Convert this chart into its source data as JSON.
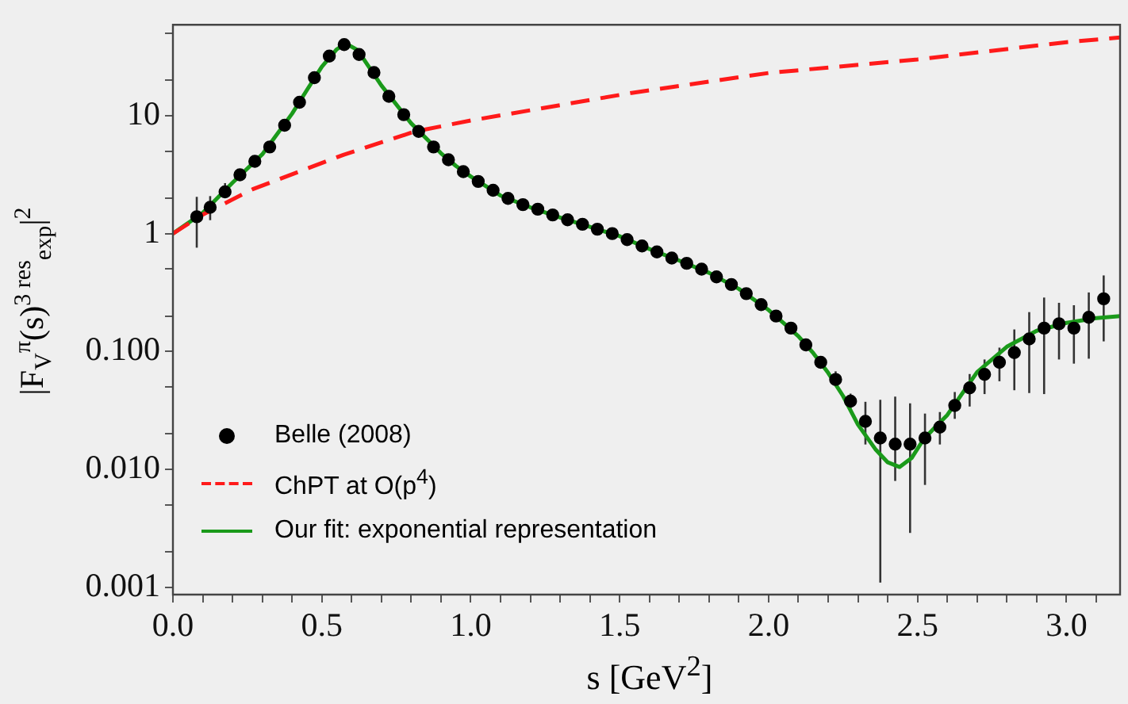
{
  "chart_data": {
    "type": "scatter",
    "xlabel": "s [GeV$^{2}$]",
    "ylabel": "|F$_{V}$$^{π}$(s)$^{3 res}$$_{exp}$|$^{2}$",
    "log": "y",
    "grid": false,
    "legend": "bottom left",
    "xlim": [
      0,
      3.18
    ],
    "ylim": [
      0.00087,
      59
    ],
    "xticks": [
      {
        "value": 0,
        "label": "0.0"
      },
      {
        "value": 0.1,
        "label": null
      },
      {
        "value": 0.2,
        "label": null
      },
      {
        "value": 0.3,
        "label": null
      },
      {
        "value": 0.4,
        "label": null
      },
      {
        "value": 0.5,
        "label": "0.5"
      },
      {
        "value": 0.6,
        "label": null
      },
      {
        "value": 0.7,
        "label": null
      },
      {
        "value": 0.8,
        "label": null
      },
      {
        "value": 0.9,
        "label": null
      },
      {
        "value": 1,
        "label": "1.0"
      },
      {
        "value": 1.1,
        "label": null
      },
      {
        "value": 1.2,
        "label": null
      },
      {
        "value": 1.3,
        "label": null
      },
      {
        "value": 1.4,
        "label": null
      },
      {
        "value": 1.5,
        "label": "1.5"
      },
      {
        "value": 1.6,
        "label": null
      },
      {
        "value": 1.7,
        "label": null
      },
      {
        "value": 1.8,
        "label": null
      },
      {
        "value": 1.9,
        "label": null
      },
      {
        "value": 2,
        "label": "2.0"
      },
      {
        "value": 2.1,
        "label": null
      },
      {
        "value": 2.2,
        "label": null
      },
      {
        "value": 2.3,
        "label": null
      },
      {
        "value": 2.4,
        "label": null
      },
      {
        "value": 2.5,
        "label": "2.5"
      },
      {
        "value": 2.6,
        "label": null
      },
      {
        "value": 2.7,
        "label": null
      },
      {
        "value": 2.8,
        "label": null
      },
      {
        "value": 2.9,
        "label": null
      },
      {
        "value": 3,
        "label": "3.0"
      },
      {
        "value": 3.1,
        "label": null
      }
    ],
    "yticks": [
      {
        "value": 0.001,
        "label": "0.001"
      },
      {
        "value": 0.002,
        "label": null
      },
      {
        "value": 0.005,
        "label": null
      },
      {
        "value": 0.01,
        "label": "0.010"
      },
      {
        "value": 0.02,
        "label": null
      },
      {
        "value": 0.05,
        "label": null
      },
      {
        "value": 0.1,
        "label": "0.100"
      },
      {
        "value": 0.2,
        "label": null
      },
      {
        "value": 0.5,
        "label": null
      },
      1,
      {
        "value": 2,
        "label": null
      },
      {
        "value": 5,
        "label": null
      },
      10,
      {
        "value": 20,
        "label": null
      },
      {
        "value": 50,
        "label": null
      }
    ],
    "series": [
      {
        "name": "Belle (2008)",
        "type": "scatter",
        "marker": "circle",
        "color": "#000000",
        "x": [
          0.08,
          0.125,
          0.175,
          0.225,
          0.275,
          0.325,
          0.375,
          0.425,
          0.475,
          0.525,
          0.575,
          0.625,
          0.675,
          0.725,
          0.775,
          0.825,
          0.875,
          0.925,
          0.975,
          1.025,
          1.075,
          1.125,
          1.175,
          1.225,
          1.275,
          1.325,
          1.375,
          1.425,
          1.475,
          1.525,
          1.575,
          1.625,
          1.675,
          1.725,
          1.775,
          1.825,
          1.875,
          1.925,
          1.975,
          2.025,
          2.075,
          2.125,
          2.175,
          2.225,
          2.275,
          2.325,
          2.375,
          2.425,
          2.475,
          2.525,
          2.575,
          2.625,
          2.675,
          2.725,
          2.775,
          2.825,
          2.875,
          2.925,
          2.975,
          3.025,
          3.075,
          3.125
        ],
        "values": [
          1.39,
          1.67,
          2.26,
          3.15,
          4.1,
          5.43,
          8.3,
          13,
          21,
          32,
          40,
          33,
          23.2,
          14.6,
          10.2,
          7.35,
          5.43,
          4.23,
          3.35,
          2.77,
          2.33,
          1.99,
          1.76,
          1.61,
          1.44,
          1.31,
          1.2,
          1.09,
          1.0,
          0.89,
          0.785,
          0.7,
          0.62,
          0.56,
          0.5,
          0.43,
          0.37,
          0.31,
          0.25,
          0.2,
          0.158,
          0.114,
          0.081,
          0.058,
          0.038,
          0.0256,
          0.0185,
          0.0164,
          0.0164,
          0.0185,
          0.0229,
          0.0349,
          0.0492,
          0.064,
          0.081,
          0.098,
          0.128,
          0.158,
          0.172,
          0.158,
          0.195,
          0.28
        ],
        "errors": [
          [
            0.76,
            2.05
          ],
          [
            1.3,
            2.08
          ],
          [
            2.05,
            2.68
          ],
          null,
          null,
          null,
          null,
          null,
          null,
          null,
          null,
          null,
          null,
          null,
          null,
          null,
          null,
          null,
          null,
          null,
          null,
          null,
          null,
          null,
          null,
          null,
          null,
          null,
          null,
          null,
          null,
          null,
          null,
          null,
          null,
          null,
          null,
          null,
          null,
          null,
          null,
          null,
          null,
          [
            0.051,
            0.068
          ],
          [
            0.032,
            0.044
          ],
          [
            0.0163,
            0.0375
          ],
          [
            0.0011,
            0.039
          ],
          [
            0.008,
            0.0415
          ],
          [
            0.0029,
            0.0364
          ],
          [
            0.0074,
            0.0298
          ],
          [
            0.0163,
            0.0307
          ],
          [
            0.0269,
            0.0454
          ],
          [
            0.0342,
            0.0645
          ],
          [
            0.0436,
            0.0857
          ],
          [
            0.056,
            0.108
          ],
          [
            0.047,
            0.154
          ],
          [
            0.0445,
            0.216
          ],
          [
            0.0436,
            0.287
          ],
          [
            0.0857,
            0.259
          ],
          [
            0.079,
            0.247
          ],
          [
            0.087,
            0.317
          ],
          [
            0.122,
            0.442
          ]
        ]
      },
      {
        "name": "ChPT at O(p$^{4}$)",
        "type": "line",
        "line_style": "dashed",
        "color": "#ff1a1a",
        "x": [
          0,
          0.1,
          0.268,
          0.574,
          0.813,
          1.0,
          1.54,
          2.0,
          2.5,
          3.0,
          3.18
        ],
        "values": [
          1,
          1.45,
          2.38,
          4.67,
          7.35,
          9.1,
          15.6,
          23,
          30,
          42,
          46
        ]
      },
      {
        "name": "Our fit: exponential representation",
        "type": "line",
        "line_style": "solid",
        "color": "#1a9a1a",
        "x": [
          0,
          0.1,
          0.2,
          0.3,
          0.4,
          0.45,
          0.5,
          0.55,
          0.58,
          0.62,
          0.7,
          0.8,
          0.9,
          0.95,
          1.0,
          1.1,
          1.2,
          1.3,
          1.4,
          1.5,
          1.6,
          1.7,
          1.8,
          1.9,
          2.0,
          2.05,
          2.1,
          2.15,
          2.2,
          2.25,
          2.3,
          2.36,
          2.4,
          2.44,
          2.48,
          2.52,
          2.56,
          2.6,
          2.7,
          2.8,
          2.9,
          3.0,
          3.1,
          3.18
        ],
        "values": [
          1.0,
          1.5,
          2.7,
          4.7,
          10.4,
          16.5,
          26,
          36.5,
          41,
          36,
          18,
          8.6,
          4.8,
          3.75,
          3.05,
          2.1,
          1.67,
          1.37,
          1.14,
          0.95,
          0.74,
          0.59,
          0.465,
          0.34,
          0.225,
          0.175,
          0.135,
          0.097,
          0.066,
          0.042,
          0.024,
          0.0147,
          0.0115,
          0.0105,
          0.0125,
          0.018,
          0.023,
          0.029,
          0.067,
          0.11,
          0.15,
          0.175,
          0.192,
          0.2
        ]
      }
    ]
  }
}
